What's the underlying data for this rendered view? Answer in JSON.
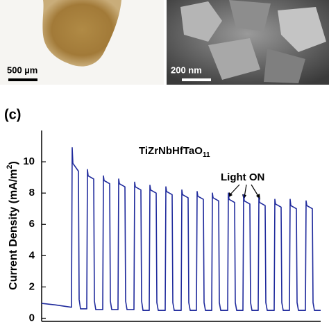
{
  "images": [
    {
      "scale_label": "500 µm"
    },
    {
      "scale_label": "200 nm"
    }
  ],
  "chart_data": {
    "type": "line",
    "panel_label": "(c)",
    "sample": {
      "formula": "TiZrNbHfTaO",
      "subscript": "11"
    },
    "ylabel": {
      "main": "Current Density (mA/m",
      "superscript": "2",
      "close": ")"
    },
    "annotation": "Light ON",
    "xlim": [
      0,
      402
    ],
    "ylim": [
      -0.2,
      12
    ],
    "yticks": [
      0,
      2,
      4,
      6,
      8,
      10
    ],
    "series": [
      {
        "color": "#1f2a9c",
        "x": [
          0,
          20,
          43,
          44,
          45,
          53,
          54,
          56,
          65,
          66,
          67,
          75,
          76,
          78,
          88,
          89,
          90,
          98,
          99,
          101,
          110,
          111,
          112,
          120,
          121,
          123,
          133,
          134,
          135,
          143,
          144,
          146,
          155,
          156,
          157,
          165,
          166,
          168,
          178,
          179,
          180,
          188,
          189,
          191,
          201,
          202,
          203,
          211,
          212,
          214,
          223,
          224,
          225,
          233,
          234,
          236,
          245,
          246,
          247,
          255,
          256,
          258,
          268,
          269,
          270,
          278,
          279,
          281,
          290,
          291,
          292,
          300,
          301,
          303,
          312,
          313,
          314,
          322,
          323,
          325,
          335,
          336,
          337,
          345,
          346,
          348,
          357,
          358,
          359,
          367,
          368,
          370,
          380,
          381,
          382,
          390,
          391,
          393,
          402
        ],
        "values": [
          0.95,
          0.85,
          0.7,
          10.9,
          9.9,
          9.4,
          1.2,
          0.6,
          0.6,
          9.5,
          9.1,
          8.9,
          1.1,
          0.55,
          0.55,
          9.1,
          8.8,
          8.6,
          1.1,
          0.55,
          0.55,
          8.9,
          8.6,
          8.4,
          1.1,
          0.55,
          0.55,
          8.7,
          8.4,
          8.2,
          1.1,
          0.5,
          0.5,
          8.5,
          8.2,
          8.0,
          1.0,
          0.5,
          0.5,
          8.4,
          8.1,
          7.9,
          1.0,
          0.5,
          0.5,
          8.2,
          7.9,
          7.7,
          1.0,
          0.5,
          0.5,
          8.1,
          7.8,
          7.6,
          1.0,
          0.5,
          0.5,
          8.0,
          7.7,
          7.5,
          1.0,
          0.5,
          0.5,
          8.0,
          7.6,
          7.4,
          1.0,
          0.5,
          0.5,
          7.9,
          7.5,
          7.3,
          1.0,
          0.5,
          0.5,
          7.7,
          7.4,
          7.2,
          1.0,
          0.5,
          0.5,
          7.6,
          7.3,
          7.1,
          1.0,
          0.5,
          0.5,
          7.6,
          7.2,
          7.0,
          1.0,
          0.5,
          0.5,
          7.5,
          7.2,
          7.0,
          1.0,
          0.5,
          0.5
        ]
      }
    ]
  }
}
